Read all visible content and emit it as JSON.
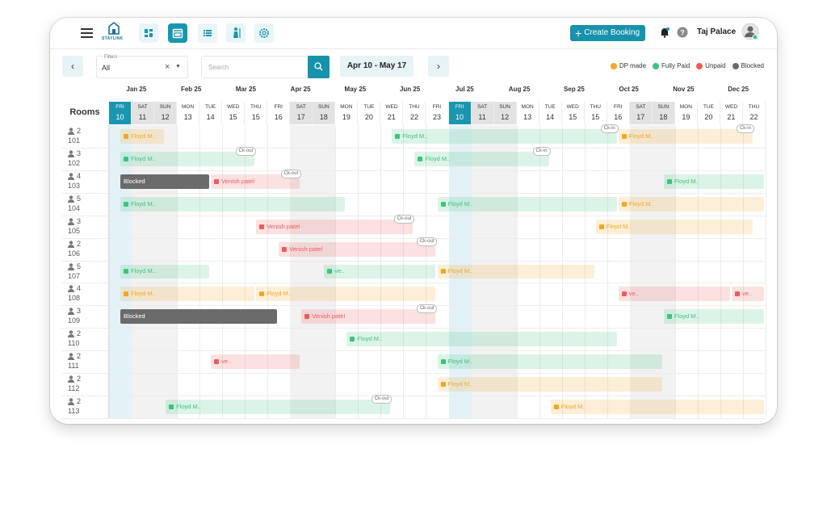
{
  "header": {
    "logo": "STAYLINK",
    "create_booking": "Create Booking",
    "hotel": "Taj Palace"
  },
  "filters": {
    "label": "Filters",
    "value": "All",
    "search_placeholder": "Search",
    "date_range": "Apr 10 - May 17"
  },
  "legend": [
    {
      "label": "DP made",
      "color": "#f5a623"
    },
    {
      "label": "Fully Paid",
      "color": "#3cc47c"
    },
    {
      "label": "Unpaid",
      "color": "#f05a5a"
    },
    {
      "label": "Blocked",
      "color": "#6b6b6b"
    }
  ],
  "calendar": {
    "rooms_header": "Rooms",
    "months": [
      "Jan 25",
      "Feb 25",
      "Mar 25",
      "Apr 25",
      "May 25",
      "Jun 25",
      "Jul 25",
      "Aug 25",
      "Sep 25",
      "Oct 25",
      "Nov 25",
      "Dec 25"
    ],
    "days": [
      {
        "day": "FRI",
        "date": "10",
        "today": true
      },
      {
        "day": "SAT",
        "date": "11",
        "weekend": true
      },
      {
        "day": "SUN",
        "date": "12",
        "weekend": true
      },
      {
        "day": "MON",
        "date": "13"
      },
      {
        "day": "TUE",
        "date": "14"
      },
      {
        "day": "WED",
        "date": "15"
      },
      {
        "day": "THU",
        "date": "15"
      },
      {
        "day": "FRI",
        "date": "16"
      },
      {
        "day": "SAT",
        "date": "17",
        "weekend": true
      },
      {
        "day": "SUN",
        "date": "18",
        "weekend": true
      },
      {
        "day": "MON",
        "date": "19"
      },
      {
        "day": "TUE",
        "date": "20"
      },
      {
        "day": "WED",
        "date": "21"
      },
      {
        "day": "THU",
        "date": "22"
      },
      {
        "day": "FRI",
        "date": "23"
      },
      {
        "day": "FRI",
        "date": "10",
        "today": true
      },
      {
        "day": "SAT",
        "date": "11",
        "weekend": true
      },
      {
        "day": "SUN",
        "date": "12",
        "weekend": true
      },
      {
        "day": "MON",
        "date": "13"
      },
      {
        "day": "TUE",
        "date": "14"
      },
      {
        "day": "WED",
        "date": "15"
      },
      {
        "day": "THU",
        "date": "15"
      },
      {
        "day": "FRI",
        "date": "16"
      },
      {
        "day": "SAT",
        "date": "17",
        "weekend": true
      },
      {
        "day": "SUN",
        "date": "18",
        "weekend": true
      },
      {
        "day": "MON",
        "date": "19"
      },
      {
        "day": "TUE",
        "date": "20"
      },
      {
        "day": "WED",
        "date": "21"
      },
      {
        "day": "THU",
        "date": "22"
      }
    ]
  },
  "rooms": [
    {
      "guests": "2",
      "number": "101",
      "bookings": [
        {
          "label": "Floyd M..",
          "status": "DP made",
          "start": 0,
          "end": 2
        },
        {
          "label": "Floyd M..",
          "status": "Fully Paid",
          "start": 12,
          "end": 22,
          "tag": "Ck-in"
        },
        {
          "label": "Floyd M..",
          "status": "DP made",
          "start": 22,
          "end": 28,
          "tag": "Ck-in"
        }
      ]
    },
    {
      "guests": "3",
      "number": "102",
      "bookings": [
        {
          "label": "Floyd M..",
          "status": "Fully Paid",
          "start": 0,
          "end": 6,
          "tag": "Ck-out"
        },
        {
          "label": "Floyd M..",
          "status": "Fully Paid",
          "start": 13,
          "end": 19,
          "tag": "Ck-in"
        }
      ]
    },
    {
      "guests": "4",
      "number": "103",
      "bookings": [
        {
          "label": "Blocked",
          "status": "Blocked",
          "start": 0,
          "end": 4
        },
        {
          "label": "Venish patel",
          "status": "Unpaid",
          "start": 4,
          "end": 8,
          "tag": "Ck-out"
        },
        {
          "label": "Floyd M..",
          "status": "Fully Paid",
          "start": 24,
          "end": 29
        }
      ]
    },
    {
      "guests": "5",
      "number": "104",
      "bookings": [
        {
          "label": "Floyd M..",
          "status": "Fully Paid",
          "start": 0,
          "end": 10
        },
        {
          "label": "Floyd M..",
          "status": "Fully Paid",
          "start": 14,
          "end": 22
        },
        {
          "label": "Floyd M..",
          "status": "DP made",
          "start": 22,
          "end": 29
        }
      ]
    },
    {
      "guests": "3",
      "number": "105",
      "bookings": [
        {
          "label": "Venish patel",
          "status": "Unpaid",
          "start": 6,
          "end": 13,
          "tag": "Ck-out"
        },
        {
          "label": "Floyd M..",
          "status": "DP made",
          "start": 21,
          "end": 28
        }
      ]
    },
    {
      "guests": "2",
      "number": "106",
      "bookings": [
        {
          "label": "Venish patel",
          "status": "Unpaid",
          "start": 7,
          "end": 14,
          "tag": "Ck-out"
        }
      ]
    },
    {
      "guests": "5",
      "number": "107",
      "bookings": [
        {
          "label": "Floyd M..",
          "status": "Fully Paid",
          "start": 0,
          "end": 4
        },
        {
          "label": "ve..",
          "status": "Fully Paid",
          "start": 9,
          "end": 14
        },
        {
          "label": "Floyd M..",
          "status": "DP made",
          "start": 14,
          "end": 21
        }
      ]
    },
    {
      "guests": "4",
      "number": "108",
      "bookings": [
        {
          "label": "Floyd M..",
          "status": "DP made",
          "start": 0,
          "end": 6
        },
        {
          "label": "Floyd M..",
          "status": "DP made",
          "start": 6,
          "end": 14
        },
        {
          "label": "ve..",
          "status": "Unpaid",
          "start": 22,
          "end": 27
        },
        {
          "label": "ve..",
          "status": "Unpaid",
          "start": 27,
          "end": 29
        }
      ]
    },
    {
      "guests": "3",
      "number": "109",
      "bookings": [
        {
          "label": "Blocked",
          "status": "Blocked",
          "start": 0,
          "end": 7
        },
        {
          "label": "Venish patel",
          "status": "Unpaid",
          "start": 8,
          "end": 14,
          "tag": "Ck-out"
        },
        {
          "label": "Floyd M..",
          "status": "Fully Paid",
          "start": 24,
          "end": 29
        }
      ]
    },
    {
      "guests": "2",
      "number": "110",
      "bookings": [
        {
          "label": "Floyd M..",
          "status": "Fully Paid",
          "start": 10,
          "end": 22
        }
      ]
    },
    {
      "guests": "2",
      "number": "111",
      "bookings": [
        {
          "label": "ve..",
          "status": "Unpaid",
          "start": 4,
          "end": 8
        },
        {
          "label": "Floyd M..",
          "status": "Fully Paid",
          "start": 14,
          "end": 24
        }
      ]
    },
    {
      "guests": "2",
      "number": "112",
      "bookings": [
        {
          "label": "Floyd M..",
          "status": "DP made",
          "start": 14,
          "end": 24
        }
      ]
    },
    {
      "guests": "2",
      "number": "113",
      "bookings": [
        {
          "label": "Floyd M..",
          "status": "Fully Paid",
          "start": 2,
          "end": 12,
          "tag": "Ck-out"
        },
        {
          "label": "Floyd M..",
          "status": "DP made",
          "start": 19,
          "end": 29
        }
      ]
    }
  ]
}
